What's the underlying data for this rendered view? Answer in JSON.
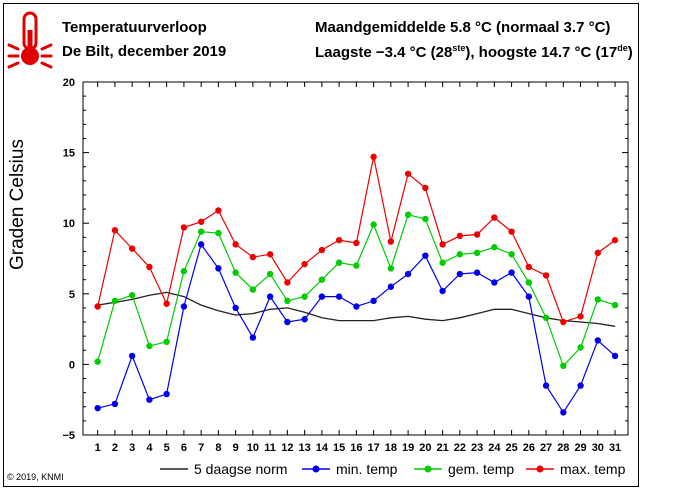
{
  "header": {
    "title": "Temperatuurverloop",
    "location": "De Bilt, december 2019",
    "avg_text": "Maandgemiddelde 5.8 °C (normaal 3.7 °C)",
    "extremes_prefix": "Laagste −3.4 °C (28",
    "low_suffix": "ste",
    "extremes_mid": "), hoogste 14.7 °C (17",
    "high_suffix": "de",
    "extremes_end": ")"
  },
  "copyright": "© 2019, KNMI",
  "icon": "thermometer-icon",
  "chart_data": {
    "type": "line",
    "x": [
      1,
      2,
      3,
      4,
      5,
      6,
      7,
      8,
      9,
      10,
      11,
      12,
      13,
      14,
      15,
      16,
      17,
      18,
      19,
      20,
      21,
      22,
      23,
      24,
      25,
      26,
      27,
      28,
      29,
      30,
      31
    ],
    "ylabel": "Graden Celsius",
    "ylim": [
      -5,
      20
    ],
    "yticks": [
      -5,
      0,
      5,
      10,
      15,
      20
    ],
    "ytick_labels": [
      "−5",
      "0",
      "5",
      "10",
      "15",
      "20"
    ],
    "grid": false,
    "legend": "bottom",
    "series": [
      {
        "name": "5 daagse norm",
        "color": "#222222",
        "marker": false,
        "values": [
          4.2,
          4.4,
          4.6,
          4.9,
          5.1,
          4.8,
          4.2,
          3.8,
          3.5,
          3.6,
          3.9,
          4.0,
          3.7,
          3.3,
          3.1,
          3.1,
          3.1,
          3.3,
          3.4,
          3.2,
          3.1,
          3.3,
          3.6,
          3.9,
          3.9,
          3.6,
          3.3,
          3.1,
          3.0,
          2.9,
          2.7
        ]
      },
      {
        "name": "min. temp",
        "color": "#0000ee",
        "marker": true,
        "values": [
          -3.1,
          -2.8,
          0.6,
          -2.5,
          -2.1,
          4.1,
          8.5,
          6.8,
          4.0,
          1.9,
          4.8,
          3.0,
          3.2,
          4.8,
          4.8,
          4.1,
          4.5,
          5.5,
          6.4,
          7.7,
          5.2,
          6.4,
          6.5,
          5.8,
          6.5,
          4.8,
          -1.5,
          -3.4,
          -1.5,
          1.7,
          0.6
        ]
      },
      {
        "name": "gem. temp",
        "color": "#00cc00",
        "marker": true,
        "values": [
          0.2,
          4.5,
          4.9,
          1.3,
          1.6,
          6.6,
          9.4,
          9.3,
          6.5,
          5.3,
          6.4,
          4.5,
          4.8,
          6.0,
          7.2,
          7.0,
          9.9,
          6.8,
          10.6,
          10.3,
          7.2,
          7.8,
          7.9,
          8.3,
          7.8,
          5.8,
          3.3,
          -0.1,
          1.2,
          4.6,
          4.2
        ]
      },
      {
        "name": "max. temp",
        "color": "#ee0000",
        "marker": true,
        "values": [
          4.1,
          9.5,
          8.2,
          6.9,
          4.3,
          9.7,
          10.1,
          10.9,
          8.5,
          7.6,
          7.8,
          5.8,
          7.1,
          8.1,
          8.8,
          8.6,
          14.7,
          8.7,
          13.5,
          12.5,
          8.5,
          9.1,
          9.2,
          10.4,
          9.4,
          6.9,
          6.3,
          3.0,
          3.4,
          7.9,
          8.8
        ]
      }
    ]
  }
}
